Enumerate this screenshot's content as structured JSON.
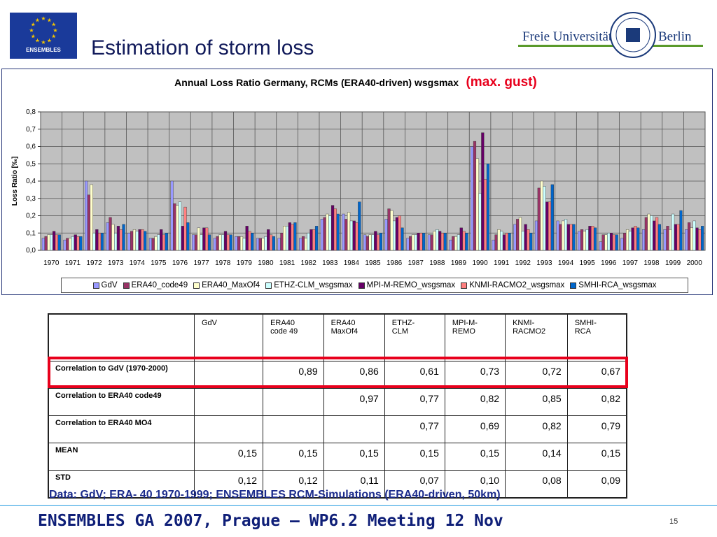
{
  "slide": {
    "title": "Estimation of storm loss",
    "logo_left_text": "ENSEMBLES",
    "logo_right_text_1": "Freie Universität",
    "logo_right_text_2": "Berlin",
    "data_note": "Data: GdV; ERA- 40 1970-1999; ENSEMBLES RCM-Simulations (ERA40-driven, 50km)",
    "footer": "ENSEMBLES GA 2007, Prague – WP6.2 Meeting 12 Nov",
    "page_number": "15"
  },
  "colors": {
    "title": "#111a5a",
    "highlight": "#e8001c",
    "footer_text": "#0f1f78",
    "footer_line": "#1f9ae0",
    "plot_bg": "#c0c0c0",
    "eu_blue": "#1a3a9a",
    "eu_star": "#f2c400",
    "fu_green": "#5a9a2a",
    "fu_blue": "#1b3a7a"
  },
  "chart_data": {
    "type": "bar",
    "title": "Annual Loss Ratio Germany, RCMs (ERA40-driven) wsgsmax",
    "title_extra": "(max. gust)",
    "xlabel": "",
    "ylabel": "Loss Ratio [‰]",
    "ylim": [
      0,
      0.8
    ],
    "yticks": [
      "0,0",
      "0,1",
      "0,2",
      "0,3",
      "0,4",
      "0,5",
      "0,6",
      "0,7",
      "0,8"
    ],
    "grid": true,
    "legend_position": "bottom",
    "categories": [
      "1970",
      "1971",
      "1972",
      "1973",
      "1974",
      "1975",
      "1976",
      "1977",
      "1978",
      "1979",
      "1980",
      "1981",
      "1982",
      "1983",
      "1984",
      "1985",
      "1986",
      "1987",
      "1988",
      "1989",
      "1990",
      "1991",
      "1992",
      "1993",
      "1994",
      "1995",
      "1996",
      "1997",
      "1998",
      "1999",
      "2000"
    ],
    "series": [
      {
        "name": "GdV",
        "color": "#9999ff",
        "values": [
          0.07,
          0.06,
          0.4,
          0.16,
          0.1,
          0.07,
          0.4,
          0.09,
          0.07,
          0.08,
          0.07,
          0.07,
          0.07,
          0.18,
          0.21,
          0.09,
          0.18,
          0.07,
          0.09,
          0.06,
          0.6,
          0.06,
          0.15,
          0.17,
          0.17,
          0.11,
          0.05,
          0.07,
          0.12,
          0.12,
          0.12
        ]
      },
      {
        "name": "ERA40_code49",
        "color": "#993366",
        "values": [
          0.08,
          0.07,
          0.32,
          0.19,
          0.11,
          0.07,
          0.27,
          0.09,
          0.08,
          0.08,
          0.07,
          0.1,
          0.08,
          0.19,
          0.18,
          0.08,
          0.24,
          0.08,
          0.09,
          0.08,
          0.63,
          0.09,
          0.18,
          0.36,
          0.15,
          0.12,
          0.09,
          0.1,
          0.19,
          0.14,
          0.16
        ]
      },
      {
        "name": "ERA40_MaxOf4",
        "color": "#ffffcc",
        "values": [
          0.09,
          0.07,
          0.38,
          0.15,
          0.12,
          0.08,
          0.26,
          0.13,
          0.09,
          0.08,
          0.07,
          0.14,
          0.07,
          0.21,
          0.22,
          0.09,
          0.23,
          0.09,
          0.11,
          0.08,
          0.53,
          0.12,
          0.19,
          0.4,
          0.17,
          0.11,
          0.09,
          0.12,
          0.21,
          0.12,
          0.13
        ]
      },
      {
        "name": "ETHZ-CLM_wsgsmax",
        "color": "#ccffff",
        "values": [
          0.09,
          0.08,
          0.1,
          0.1,
          0.11,
          0.09,
          0.28,
          0.09,
          0.09,
          0.07,
          0.08,
          0.14,
          0.1,
          0.2,
          0.17,
          0.09,
          0.17,
          0.09,
          0.12,
          0.09,
          0.33,
          0.11,
          0.11,
          0.37,
          0.18,
          0.12,
          0.1,
          0.11,
          0.2,
          0.21,
          0.17
        ]
      },
      {
        "name": "MPI-M-REMO_wsgsmax",
        "color": "#660066",
        "values": [
          0.11,
          0.09,
          0.12,
          0.14,
          0.12,
          0.12,
          0.14,
          0.13,
          0.11,
          0.14,
          0.12,
          0.16,
          0.12,
          0.26,
          0.17,
          0.11,
          0.19,
          0.1,
          0.11,
          0.13,
          0.68,
          0.09,
          0.15,
          0.28,
          0.15,
          0.14,
          0.1,
          0.13,
          0.17,
          0.15,
          0.13
        ]
      },
      {
        "name": "KNMI-RACMO2_wsgsmax",
        "color": "#ff8080",
        "values": [
          0.09,
          0.08,
          0.1,
          0.12,
          0.12,
          0.09,
          0.25,
          0.13,
          0.09,
          0.11,
          0.09,
          0.15,
          0.12,
          0.24,
          0.16,
          0.09,
          0.2,
          0.1,
          0.1,
          0.11,
          0.41,
          0.1,
          0.12,
          0.28,
          0.15,
          0.14,
          0.09,
          0.14,
          0.19,
          0.15,
          0.12
        ]
      },
      {
        "name": "SMHI-RCA_wsgsmax",
        "color": "#0066cc",
        "values": [
          0.09,
          0.08,
          0.1,
          0.15,
          0.11,
          0.1,
          0.16,
          0.09,
          0.09,
          0.1,
          0.08,
          0.16,
          0.14,
          0.21,
          0.28,
          0.1,
          0.13,
          0.1,
          0.1,
          0.1,
          0.5,
          0.1,
          0.1,
          0.38,
          0.15,
          0.13,
          0.09,
          0.13,
          0.15,
          0.23,
          0.14
        ]
      }
    ]
  },
  "table": {
    "columns": [
      "",
      "GdV",
      "ERA40\ncode 49",
      "ERA40\nMaxOf4",
      "ETHZ-\nCLM",
      "MPI-M-\nREMO",
      "KNMI-\nRACMO2",
      "SMHI-\nRCA"
    ],
    "rows": [
      {
        "label": "Correlation to GdV (1970-2000)",
        "cells": [
          "",
          "0,89",
          "0,86",
          "0,61",
          "0,73",
          "0,72",
          "0,67"
        ]
      },
      {
        "label": "Correlation to ERA40 code49",
        "cells": [
          "",
          "",
          "0,97",
          "0,77",
          "0,82",
          "0,85",
          "0,82"
        ]
      },
      {
        "label": "Correlation to ERA40 MO4",
        "cells": [
          "",
          "",
          "",
          "0,77",
          "0,69",
          "0,82",
          "0,79"
        ]
      },
      {
        "label": "MEAN",
        "cells": [
          "0,15",
          "0,15",
          "0,15",
          "0,15",
          "0,15",
          "0,14",
          "0,15"
        ]
      },
      {
        "label": "STD",
        "cells": [
          "0,12",
          "0,12",
          "0,11",
          "0,07",
          "0,10",
          "0,08",
          "0,09"
        ]
      }
    ]
  }
}
